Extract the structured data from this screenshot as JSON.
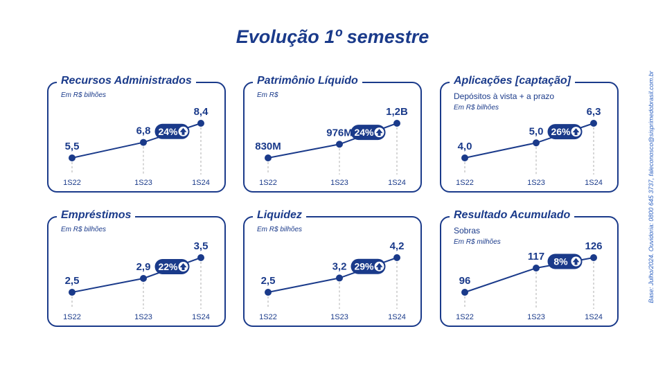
{
  "title": "Evolução 1º semestre",
  "side_note": "Base: Julho/2024. Ouvidoria: 0800 645 3737, faleconosco@sisprimedobrasil.com.br",
  "colors": {
    "primary": "#1a3a8a",
    "accent": "#2a5fc0",
    "dashed": "#bcbcbc"
  },
  "chart_data": [
    {
      "type": "line",
      "title": "Recursos Administrados",
      "subtitle": "",
      "unit": "Em R$ bilhões",
      "categories": [
        "1S22",
        "1S23",
        "1S24"
      ],
      "values": [
        5.5,
        6.8,
        8.4
      ],
      "labels": [
        "5,5",
        "6,8",
        "8,4"
      ],
      "badge": "24%",
      "badge_icon": "arrow-up-icon"
    },
    {
      "type": "line",
      "title": "Patrimônio Líquido",
      "subtitle": "",
      "unit": "Em R$",
      "categories": [
        "1S22",
        "1S23",
        "1S24"
      ],
      "values": [
        830000000,
        976000000,
        1200000000
      ],
      "labels": [
        "830M",
        "976M",
        "1,2B"
      ],
      "badge": "24%",
      "badge_icon": "arrow-up-icon"
    },
    {
      "type": "line",
      "title": "Aplicações [captação]",
      "subtitle": "Depósitos à vista + a prazo",
      "unit": "Em R$ bilhões",
      "categories": [
        "1S22",
        "1S23",
        "1S24"
      ],
      "values": [
        4.0,
        5.0,
        6.3
      ],
      "labels": [
        "4,0",
        "5,0",
        "6,3"
      ],
      "badge": "26%",
      "badge_icon": "arrow-up-icon"
    },
    {
      "type": "line",
      "title": "Empréstimos",
      "subtitle": "",
      "unit": "Em R$ bilhões",
      "categories": [
        "1S22",
        "1S23",
        "1S24"
      ],
      "values": [
        2.5,
        2.9,
        3.5
      ],
      "labels": [
        "2,5",
        "2,9",
        "3,5"
      ],
      "badge": "22%",
      "badge_icon": "arrow-up-icon"
    },
    {
      "type": "line",
      "title": "Liquidez",
      "subtitle": "",
      "unit": "Em R$ bilhões",
      "categories": [
        "1S22",
        "1S23",
        "1S24"
      ],
      "values": [
        2.5,
        3.2,
        4.2
      ],
      "labels": [
        "2,5",
        "3,2",
        "4,2"
      ],
      "badge": "29%",
      "badge_icon": "arrow-up-icon"
    },
    {
      "type": "line",
      "title": "Resultado Acumulado",
      "subtitle": "Sobras",
      "unit": "Em R$ milhões",
      "categories": [
        "1S22",
        "1S23",
        "1S24"
      ],
      "values": [
        96,
        117,
        126
      ],
      "labels": [
        "96",
        "117",
        "126"
      ],
      "badge": "8%",
      "badge_icon": "arrow-up-icon"
    }
  ]
}
